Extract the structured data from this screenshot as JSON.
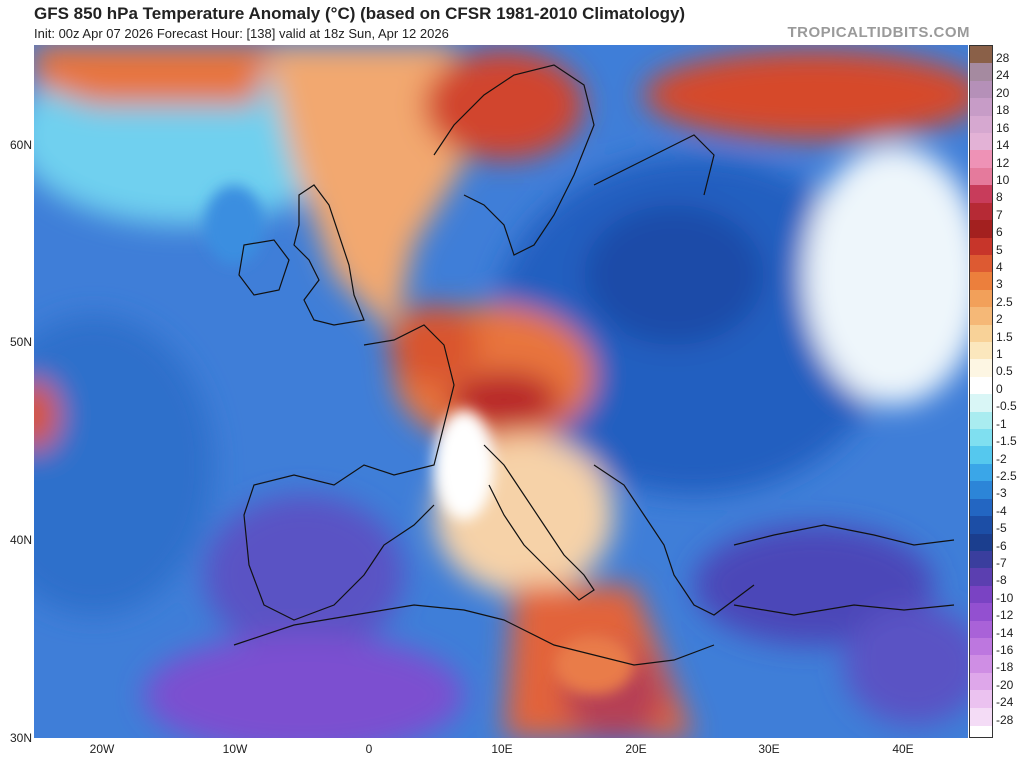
{
  "header": {
    "title": "GFS 850 hPa Temperature Anomaly (°C) (based on CFSR 1981-2010 Climatology)",
    "subtitle": "Init: 00z Apr 07 2026   Forecast Hour: [138]   valid at 18z Sun, Apr 12 2026",
    "watermark": "TROPICALTIDBITS.COM"
  },
  "axes": {
    "lat_labels": [
      "60N",
      "50N",
      "40N",
      "30N"
    ],
    "lon_labels": [
      "20W",
      "10W",
      "0",
      "10E",
      "20E",
      "30E",
      "40E"
    ]
  },
  "colorbar": {
    "labels": [
      "28",
      "24",
      "20",
      "18",
      "16",
      "14",
      "12",
      "10",
      "8",
      "7",
      "6",
      "5",
      "4",
      "3",
      "2.5",
      "2",
      "1.5",
      "1",
      "0.5",
      "0",
      "-0.5",
      "-1",
      "-1.5",
      "-2",
      "-2.5",
      "-3",
      "-4",
      "-5",
      "-6",
      "-7",
      "-8",
      "-10",
      "-12",
      "-14",
      "-16",
      "-18",
      "-20",
      "-24",
      "-28"
    ],
    "colors": [
      "#8a6048",
      "#a58aa0",
      "#b590b8",
      "#c79cc7",
      "#d6a8d0",
      "#e3b2d6",
      "#ee92b6",
      "#e57a9c",
      "#c83c5b",
      "#b62a35",
      "#a3201f",
      "#c7352a",
      "#dd5a32",
      "#ec7f3c",
      "#f2a05a",
      "#f5b877",
      "#f8d298",
      "#fbe7bd",
      "#fdf6e3",
      "#ffffff",
      "#d9f6f6",
      "#a9ecf0",
      "#7fdff0",
      "#55c8ee",
      "#3aa6e8",
      "#2c85d8",
      "#2366c2",
      "#1c4ea6",
      "#1b3e8e",
      "#3a3e9e",
      "#5b3fb0",
      "#7a43c3",
      "#9350d0",
      "#a962d8",
      "#bd77df",
      "#cf8ee4",
      "#dea7ea",
      "#ebc2f0",
      "#f4dcf6"
    ]
  },
  "map_layers": {
    "ocean_base": "#3f7ed8",
    "regions": [
      {
        "name": "atlantic-blue",
        "color": "#3f86da"
      },
      {
        "name": "iceland-cyan",
        "color": "#6fd0ef"
      },
      {
        "name": "uk-warm-band",
        "color": "#f2a870"
      },
      {
        "name": "benelux-warm",
        "color": "#d9552f"
      },
      {
        "name": "central-europe-warm",
        "color": "#e8743c"
      },
      {
        "name": "alps-hot",
        "color": "#b8262c"
      },
      {
        "name": "scandinavia-red",
        "color": "#d1452d"
      },
      {
        "name": "north-russia-red",
        "color": "#d64a2c"
      },
      {
        "name": "eastern-europe-blue",
        "color": "#245fc0"
      },
      {
        "name": "poland-deep-blue",
        "color": "#1d4ca8"
      },
      {
        "name": "russia-white",
        "color": "#eef6fb"
      },
      {
        "name": "iberia-purple",
        "color": "#5a52c4"
      },
      {
        "name": "north-africa-purple",
        "color": "#7b4fd0"
      },
      {
        "name": "italy-light",
        "color": "#f6d2a8"
      },
      {
        "name": "med-warm-tongue",
        "color": "#e2633a"
      },
      {
        "name": "libya-hot",
        "color": "#b64055"
      },
      {
        "name": "turkey-purple",
        "color": "#4b46b8"
      }
    ]
  }
}
